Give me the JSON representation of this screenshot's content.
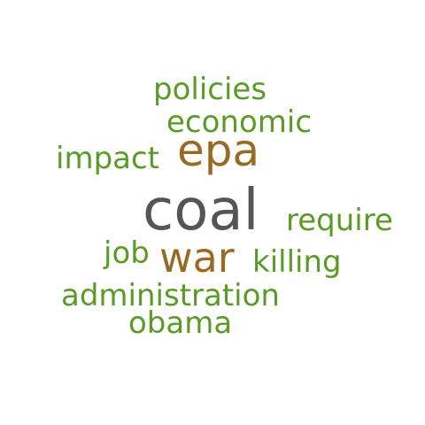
{
  "colors": {
    "background": "#ffffff",
    "gray": "#555555",
    "brown": "#9a6a22",
    "green": "#5a9a26"
  },
  "words": {
    "coal": {
      "text": "coal",
      "color": "#555555"
    },
    "epa": {
      "text": "epa",
      "color": "#9a6a22"
    },
    "war": {
      "text": "war",
      "color": "#9a6a22"
    },
    "policies": {
      "text": "policies",
      "color": "#5a9a26"
    },
    "economic": {
      "text": "economic",
      "color": "#5a9a26"
    },
    "impact": {
      "text": "impact",
      "color": "#5a9a26"
    },
    "require": {
      "text": "require",
      "color": "#5a9a26"
    },
    "job": {
      "text": "job",
      "color": "#5a9a26"
    },
    "killing": {
      "text": "killing",
      "color": "#5a9a26"
    },
    "administration": {
      "text": "administration",
      "color": "#5a9a26"
    },
    "obama": {
      "text": "obama",
      "color": "#5a9a26"
    }
  }
}
